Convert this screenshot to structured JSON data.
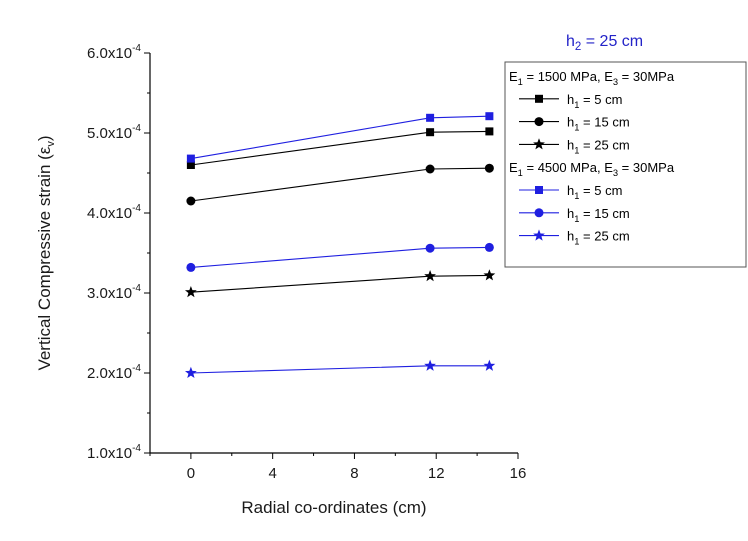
{
  "chart_data": {
    "type": "line",
    "annotation": {
      "prefix": "h",
      "sub": "2",
      "suffix": " = 25 cm",
      "color": "#2323c8"
    },
    "xlabel": "Radial co-ordinates (cm)",
    "ylabel": {
      "prefix": "Vertical Compressive strain (",
      "symbol": "ε",
      "sub": "v",
      "suffix": ")"
    },
    "xlim": [
      -2,
      16
    ],
    "ylim": [
      0.0001,
      0.0006
    ],
    "x_ticks": [
      {
        "value": 0,
        "label": "0"
      },
      {
        "value": 4,
        "label": "4"
      },
      {
        "value": 8,
        "label": "8"
      },
      {
        "value": 12,
        "label": "12"
      },
      {
        "value": 16,
        "label": "16"
      }
    ],
    "y_ticks": [
      {
        "value": 0.0001,
        "label": "1.0x10",
        "exp": "-4"
      },
      {
        "value": 0.0002,
        "label": "2.0x10",
        "exp": "-4"
      },
      {
        "value": 0.0003,
        "label": "3.0x10",
        "exp": "-4"
      },
      {
        "value": 0.0004,
        "label": "4.0x10",
        "exp": "-4"
      },
      {
        "value": 0.0005,
        "label": "5.0x10",
        "exp": "-4"
      },
      {
        "value": 0.0006,
        "label": "6.0x10",
        "exp": "-4"
      }
    ],
    "grid": false,
    "legend_position": "top-right",
    "groups": [
      {
        "header": {
          "parts": [
            [
              "E",
              "1",
              " = 1500 MPa, "
            ],
            [
              "E",
              "3",
              " = 30MPa"
            ]
          ]
        }
      },
      {
        "header": {
          "parts": [
            [
              "E",
              "1",
              " = 4500 MPa, "
            ],
            [
              "E",
              "3",
              " = 30MPa"
            ]
          ]
        }
      }
    ],
    "series": [
      {
        "group": 0,
        "label": {
          "prefix": "h",
          "sub": "1",
          "suffix": " =  5 cm"
        },
        "color": "#000000",
        "marker": "square",
        "x": [
          0,
          11.7,
          14.6
        ],
        "y": [
          0.00046,
          0.000501,
          0.000502
        ]
      },
      {
        "group": 0,
        "label": {
          "prefix": "h",
          "sub": "1",
          "suffix": " = 15 cm"
        },
        "color": "#000000",
        "marker": "circle",
        "x": [
          0,
          11.7,
          14.6
        ],
        "y": [
          0.000415,
          0.000455,
          0.000456
        ]
      },
      {
        "group": 0,
        "label": {
          "prefix": "h",
          "sub": "1",
          "suffix": " = 25 cm"
        },
        "color": "#000000",
        "marker": "star",
        "x": [
          0,
          11.7,
          14.6
        ],
        "y": [
          0.000301,
          0.000321,
          0.000322
        ]
      },
      {
        "group": 1,
        "label": {
          "prefix": "h",
          "sub": "1",
          "suffix": " =  5 cm"
        },
        "color": "#1f1fe0",
        "marker": "square",
        "x": [
          0,
          11.7,
          14.6
        ],
        "y": [
          0.000468,
          0.000519,
          0.000521
        ]
      },
      {
        "group": 1,
        "label": {
          "prefix": "h",
          "sub": "1",
          "suffix": " = 15 cm"
        },
        "color": "#1f1fe0",
        "marker": "circle",
        "x": [
          0,
          11.7,
          14.6
        ],
        "y": [
          0.000332,
          0.000356,
          0.000357
        ]
      },
      {
        "group": 1,
        "label": {
          "prefix": "h",
          "sub": "1",
          "suffix": " = 25 cm"
        },
        "color": "#1f1fe0",
        "marker": "star",
        "x": [
          0,
          11.7,
          14.6
        ],
        "y": [
          0.0002,
          0.000209,
          0.000209
        ]
      }
    ]
  }
}
